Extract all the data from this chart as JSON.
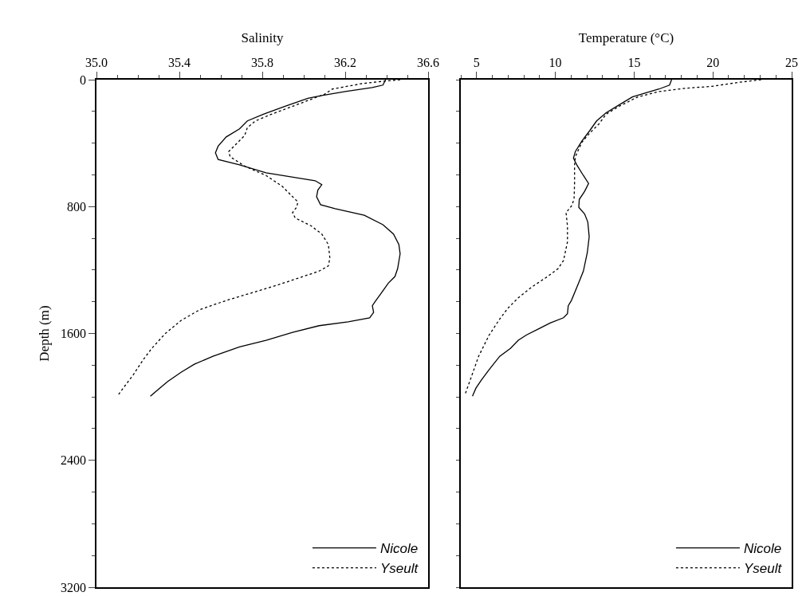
{
  "chart_data": [
    {
      "type": "line",
      "xlabel": "Salinity",
      "ylabel": "Depth (m)",
      "xlim": [
        35.0,
        36.6
      ],
      "ylim": [
        3200,
        0
      ],
      "legend": "bottom right",
      "marker": "none",
      "xticks": [
        {
          "value": 35.0,
          "label": "35.0"
        },
        {
          "value": 35.1,
          "label": null
        },
        {
          "value": 35.2,
          "label": null
        },
        {
          "value": 35.3,
          "label": null
        },
        35.4,
        {
          "value": 35.5,
          "label": null
        },
        {
          "value": 35.6,
          "label": null
        },
        {
          "value": 35.7,
          "label": null
        },
        35.8,
        {
          "value": 35.9,
          "label": null
        },
        {
          "value": 36.0,
          "label": null
        },
        {
          "value": 36.1,
          "label": null
        },
        36.2,
        {
          "value": 36.3,
          "label": null
        },
        {
          "value": 36.4,
          "label": null
        },
        {
          "value": 36.5,
          "label": null
        },
        36.6
      ],
      "yticks": [
        0,
        {
          "value": 200,
          "label": null
        },
        {
          "value": 400,
          "label": null
        },
        {
          "value": 600,
          "label": null
        },
        800,
        {
          "value": 1000,
          "label": null
        },
        {
          "value": 1200,
          "label": null
        },
        {
          "value": 1400,
          "label": null
        },
        1600,
        {
          "value": 1800,
          "label": null
        },
        {
          "value": 2000,
          "label": null
        },
        {
          "value": 2200,
          "label": null
        },
        2400,
        {
          "value": 2600,
          "label": null
        },
        {
          "value": 2800,
          "label": null
        },
        {
          "value": 3000,
          "label": null
        },
        3200
      ],
      "series": [
        {
          "name": "Nicole",
          "color": "#000000",
          "line_style": "solid",
          "x": [
            36.395,
            36.382,
            36.33,
            36.2,
            36.087,
            36.02,
            35.91,
            35.805,
            35.728,
            35.69,
            35.626,
            35.587,
            35.574,
            35.587,
            35.69,
            35.818,
            35.972,
            36.055,
            36.087,
            36.068,
            36.062,
            36.081,
            36.151,
            36.292,
            36.382,
            36.433,
            36.459,
            36.465,
            36.453,
            36.44,
            36.408,
            36.376,
            36.344,
            36.331,
            36.337,
            36.318,
            36.215,
            36.074,
            35.946,
            35.818,
            35.69,
            35.562,
            35.472,
            35.408,
            35.344,
            35.305,
            35.26
          ],
          "values": [
            0,
            34,
            50,
            75,
            100,
            117,
            168,
            218,
            260,
            310,
            361,
            419,
            461,
            503,
            537,
            587,
            620,
            637,
            662,
            696,
            738,
            788,
            813,
            855,
            914,
            973,
            1040,
            1098,
            1191,
            1241,
            1283,
            1342,
            1400,
            1425,
            1467,
            1501,
            1526,
            1551,
            1593,
            1643,
            1685,
            1744,
            1794,
            1845,
            1903,
            1945,
            1996
          ]
        },
        {
          "name": "Yseult",
          "color": "#000000",
          "line_style": "dotted",
          "x": [
            36.465,
            36.395,
            36.28,
            36.138,
            36.1,
            36.049,
            35.946,
            35.844,
            35.767,
            35.728,
            35.715,
            35.677,
            35.638,
            35.645,
            35.715,
            35.818,
            35.895,
            35.933,
            35.972,
            35.965,
            35.946,
            35.959,
            36.036,
            36.087,
            36.119,
            36.126,
            36.119,
            36.074,
            35.997,
            35.882,
            35.754,
            35.626,
            35.497,
            35.408,
            35.331,
            35.267,
            35.228,
            35.177,
            35.138,
            35.1
          ],
          "values": [
            0,
            8,
            25,
            59,
            92,
            117,
            168,
            218,
            260,
            302,
            352,
            402,
            453,
            486,
            545,
            604,
            671,
            721,
            771,
            805,
            838,
            872,
            922,
            973,
            1040,
            1124,
            1174,
            1207,
            1241,
            1291,
            1342,
            1392,
            1451,
            1518,
            1602,
            1694,
            1761,
            1862,
            1929,
            1996
          ]
        }
      ]
    },
    {
      "type": "line",
      "xlabel": "Temperature (°C)",
      "xlim": [
        4,
        25
      ],
      "ylim": [
        3200,
        0
      ],
      "legend": "bottom right",
      "marker": "none",
      "tick_labels": "x",
      "xticks": [
        {
          "value": 4,
          "label": null
        },
        5,
        {
          "value": 6,
          "label": null
        },
        {
          "value": 7,
          "label": null
        },
        {
          "value": 8,
          "label": null
        },
        {
          "value": 9,
          "label": null
        },
        10,
        {
          "value": 11,
          "label": null
        },
        {
          "value": 12,
          "label": null
        },
        {
          "value": 13,
          "label": null
        },
        {
          "value": 14,
          "label": null
        },
        15,
        {
          "value": 16,
          "label": null
        },
        {
          "value": 17,
          "label": null
        },
        {
          "value": 18,
          "label": null
        },
        {
          "value": 19,
          "label": null
        },
        20,
        {
          "value": 21,
          "label": null
        },
        {
          "value": 22,
          "label": null
        },
        {
          "value": 23,
          "label": null
        },
        {
          "value": 24,
          "label": null
        },
        25
      ],
      "yticks": [
        {
          "value": 0,
          "label": null
        },
        {
          "value": 200,
          "label": null
        },
        {
          "value": 400,
          "label": null
        },
        {
          "value": 600,
          "label": null
        },
        {
          "value": 800,
          "label": null
        },
        {
          "value": 1000,
          "label": null
        },
        {
          "value": 1200,
          "label": null
        },
        {
          "value": 1400,
          "label": null
        },
        {
          "value": 1600,
          "label": null
        },
        {
          "value": 1800,
          "label": null
        },
        {
          "value": 2000,
          "label": null
        },
        {
          "value": 2200,
          "label": null
        },
        {
          "value": 2400,
          "label": null
        },
        {
          "value": 2600,
          "label": null
        },
        {
          "value": 2800,
          "label": null
        },
        {
          "value": 3000,
          "label": null
        },
        {
          "value": 3200,
          "label": null
        }
      ],
      "series": [
        {
          "name": "Nicole",
          "color": "#000000",
          "line_style": "solid",
          "x": [
            17.38,
            17.25,
            16.58,
            15.73,
            14.89,
            14.05,
            13.21,
            12.62,
            12.2,
            11.69,
            11.27,
            11.15,
            11.36,
            11.78,
            12.11,
            11.86,
            11.52,
            11.49,
            11.86,
            12.06,
            12.15,
            12.03,
            11.78,
            11.44,
            11.02,
            10.82,
            10.77,
            10.52,
            9.67,
            9.0,
            8.16,
            7.65,
            7.15,
            6.47,
            5.8,
            5.3,
            4.96,
            4.74
          ],
          "values": [
            0,
            34,
            59,
            84,
            109,
            159,
            210,
            260,
            319,
            386,
            453,
            495,
            537,
            604,
            654,
            704,
            755,
            805,
            847,
            897,
            990,
            1090,
            1207,
            1291,
            1392,
            1425,
            1476,
            1501,
            1534,
            1568,
            1610,
            1643,
            1694,
            1744,
            1828,
            1895,
            1945,
            1996
          ]
        },
        {
          "name": "Yseult",
          "color": "#000000",
          "line_style": "dotted",
          "x": [
            23.06,
            21.63,
            19.94,
            18.26,
            16.58,
            15.23,
            14.05,
            13.21,
            12.79,
            12.2,
            11.69,
            11.27,
            11.22,
            11.22,
            11.19,
            11.02,
            10.68,
            10.77,
            10.77,
            10.52,
            10.18,
            9.51,
            8.49,
            7.65,
            6.98,
            6.47,
            5.8,
            5.13,
            4.71,
            4.29
          ],
          "values": [
            0,
            17,
            42,
            54,
            75,
            109,
            168,
            218,
            277,
            335,
            394,
            486,
            537,
            654,
            755,
            797,
            838,
            922,
            1023,
            1140,
            1191,
            1241,
            1308,
            1375,
            1442,
            1509,
            1610,
            1744,
            1862,
            1979
          ]
        }
      ]
    }
  ]
}
